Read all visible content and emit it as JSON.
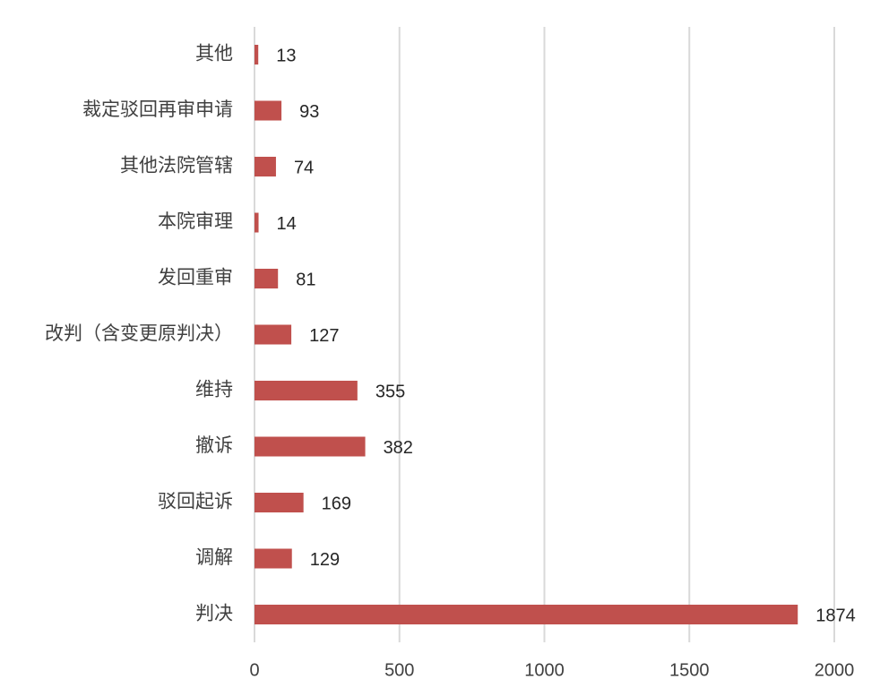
{
  "chart_data": {
    "type": "bar",
    "orientation": "horizontal",
    "categories": [
      "其他",
      "裁定驳回再审申请",
      "其他法院管辖",
      "本院审理",
      "发回重审",
      "改判（含变更原判决）",
      "维持",
      "撤诉",
      "驳回起诉",
      "调解",
      "判决"
    ],
    "values": [
      13,
      93,
      74,
      14,
      81,
      127,
      355,
      382,
      169,
      129,
      1874
    ],
    "color": "#c0504d",
    "xlim": [
      0,
      2000
    ],
    "xticks": [
      0,
      500,
      1000,
      1500,
      2000
    ],
    "grid": true
  }
}
